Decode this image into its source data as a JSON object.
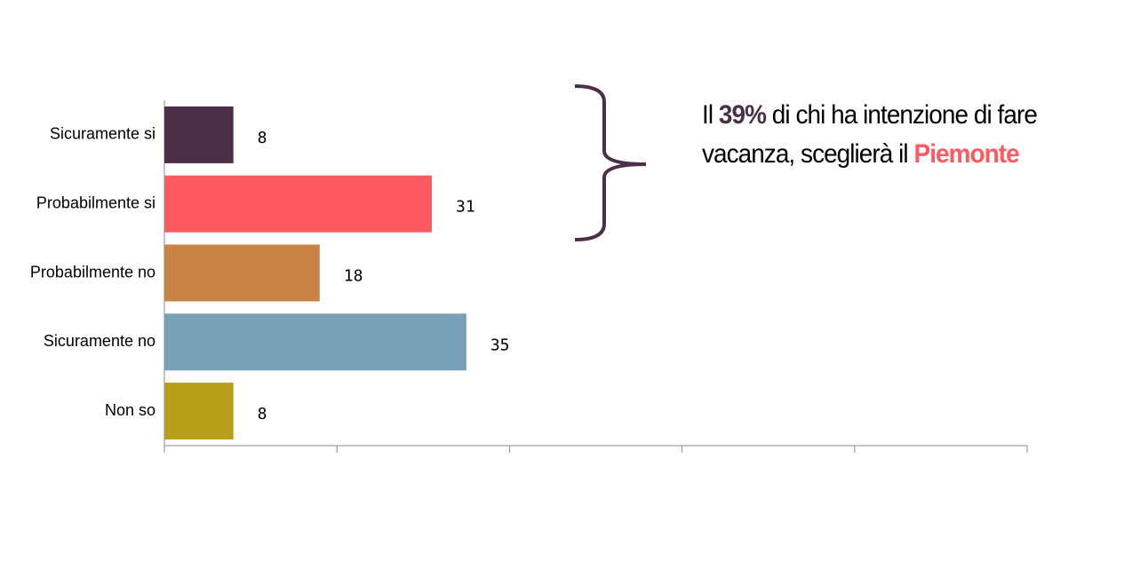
{
  "chart_data": {
    "type": "hbar",
    "categories": [
      "Sicuramente si",
      "Probabilmente si",
      "Probabilmente no",
      "Sicuramente no",
      "Non so"
    ],
    "values": [
      8,
      31,
      18,
      35,
      8
    ],
    "colors": [
      "#4a2f47",
      "#ff5a5f",
      "#c98342",
      "#78a0b6",
      "#b89f1a"
    ],
    "xlim": [
      0,
      100
    ],
    "xticks": [
      0,
      20,
      40,
      60,
      80,
      100
    ],
    "annotation": [
      {
        "text": "Il ",
        "color": "#000000",
        "bold": false
      },
      {
        "text": "39%",
        "color": "#4a2f47",
        "bold": true
      },
      {
        "text": " di chi ha intenzione di fare vacanza, sceglierà il ",
        "color": "#000000",
        "bold": false
      },
      {
        "text": "Piemonte",
        "color": "#ff5a5f",
        "bold": true
      }
    ]
  }
}
